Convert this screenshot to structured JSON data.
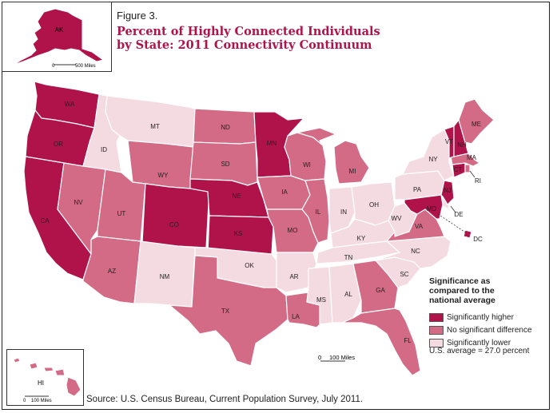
{
  "figure_label": "Figure 3.",
  "title": "Percent of Highly Connected Individuals\nby State: 2011 Connectivity Continuum",
  "legend": {
    "title": "Significance as compared to the national average",
    "items": [
      {
        "label": "Significantly higher",
        "color": "#b0134a"
      },
      {
        "label": "No significant difference",
        "color": "#d36b86"
      },
      {
        "label": "Significantly lower",
        "color": "#f4dbe2"
      }
    ]
  },
  "us_average": "U.S. average = 27.0 percent",
  "scales": {
    "main": "100 Miles",
    "alaska": "500 Miles",
    "hawaii": "100 Miles",
    "zero": "0"
  },
  "source": "Source: U.S. Census Bureau, Current Population Survey, July 2011.",
  "colors": {
    "higher": "#b0134a",
    "nodiff": "#d36b86",
    "lower": "#f4dbe2",
    "border": "#ffffff",
    "outline": "#8a8a8a"
  },
  "states": {
    "WA": {
      "label": "WA",
      "category": "higher"
    },
    "OR": {
      "label": "OR",
      "category": "higher"
    },
    "CA": {
      "label": "CA",
      "category": "higher"
    },
    "ID": {
      "label": "ID",
      "category": "lower"
    },
    "NV": {
      "label": "NV",
      "category": "nodiff"
    },
    "MT": {
      "label": "MT",
      "category": "lower"
    },
    "WY": {
      "label": "WY",
      "category": "nodiff"
    },
    "UT": {
      "label": "UT",
      "category": "nodiff"
    },
    "AZ": {
      "label": "AZ",
      "category": "nodiff"
    },
    "CO": {
      "label": "CO",
      "category": "higher"
    },
    "NM": {
      "label": "NM",
      "category": "lower"
    },
    "ND": {
      "label": "ND",
      "category": "nodiff"
    },
    "SD": {
      "label": "SD",
      "category": "nodiff"
    },
    "NE": {
      "label": "NE",
      "category": "higher"
    },
    "KS": {
      "label": "KS",
      "category": "higher"
    },
    "OK": {
      "label": "OK",
      "category": "lower"
    },
    "TX": {
      "label": "TX",
      "category": "nodiff"
    },
    "MN": {
      "label": "MN",
      "category": "higher"
    },
    "IA": {
      "label": "IA",
      "category": "nodiff"
    },
    "MO": {
      "label": "MO",
      "category": "nodiff"
    },
    "AR": {
      "label": "AR",
      "category": "lower"
    },
    "LA": {
      "label": "LA",
      "category": "nodiff"
    },
    "WI": {
      "label": "WI",
      "category": "nodiff"
    },
    "IL": {
      "label": "IL",
      "category": "nodiff"
    },
    "MI": {
      "label": "MI",
      "category": "nodiff"
    },
    "IN": {
      "label": "IN",
      "category": "lower"
    },
    "OH": {
      "label": "OH",
      "category": "lower"
    },
    "KY": {
      "label": "KY",
      "category": "lower"
    },
    "TN": {
      "label": "TN",
      "category": "lower"
    },
    "MS": {
      "label": "MS",
      "category": "lower"
    },
    "AL": {
      "label": "AL",
      "category": "lower"
    },
    "GA": {
      "label": "GA",
      "category": "nodiff"
    },
    "FL": {
      "label": "FL",
      "category": "nodiff"
    },
    "SC": {
      "label": "SC",
      "category": "lower"
    },
    "NC": {
      "label": "NC",
      "category": "lower"
    },
    "VA": {
      "label": "VA",
      "category": "nodiff"
    },
    "WV": {
      "label": "WV",
      "category": "lower"
    },
    "PA": {
      "label": "PA",
      "category": "lower"
    },
    "NY": {
      "label": "NY",
      "category": "lower"
    },
    "VT": {
      "label": "VT",
      "category": "higher"
    },
    "NH": {
      "label": "NH",
      "category": "higher"
    },
    "ME": {
      "label": "ME",
      "category": "nodiff"
    },
    "MA": {
      "label": "MA",
      "category": "nodiff"
    },
    "CT": {
      "label": "CT",
      "category": "higher"
    },
    "RI": {
      "label": "RI",
      "category": "nodiff"
    },
    "NJ": {
      "label": "NJ",
      "category": "higher"
    },
    "DE": {
      "label": "DE",
      "category": "lower"
    },
    "MD": {
      "label": "MD",
      "category": "higher"
    },
    "DC": {
      "label": "DC",
      "category": "higher"
    },
    "AK": {
      "label": "AK",
      "category": "higher"
    },
    "HI": {
      "label": "HI",
      "category": "nodiff"
    }
  }
}
